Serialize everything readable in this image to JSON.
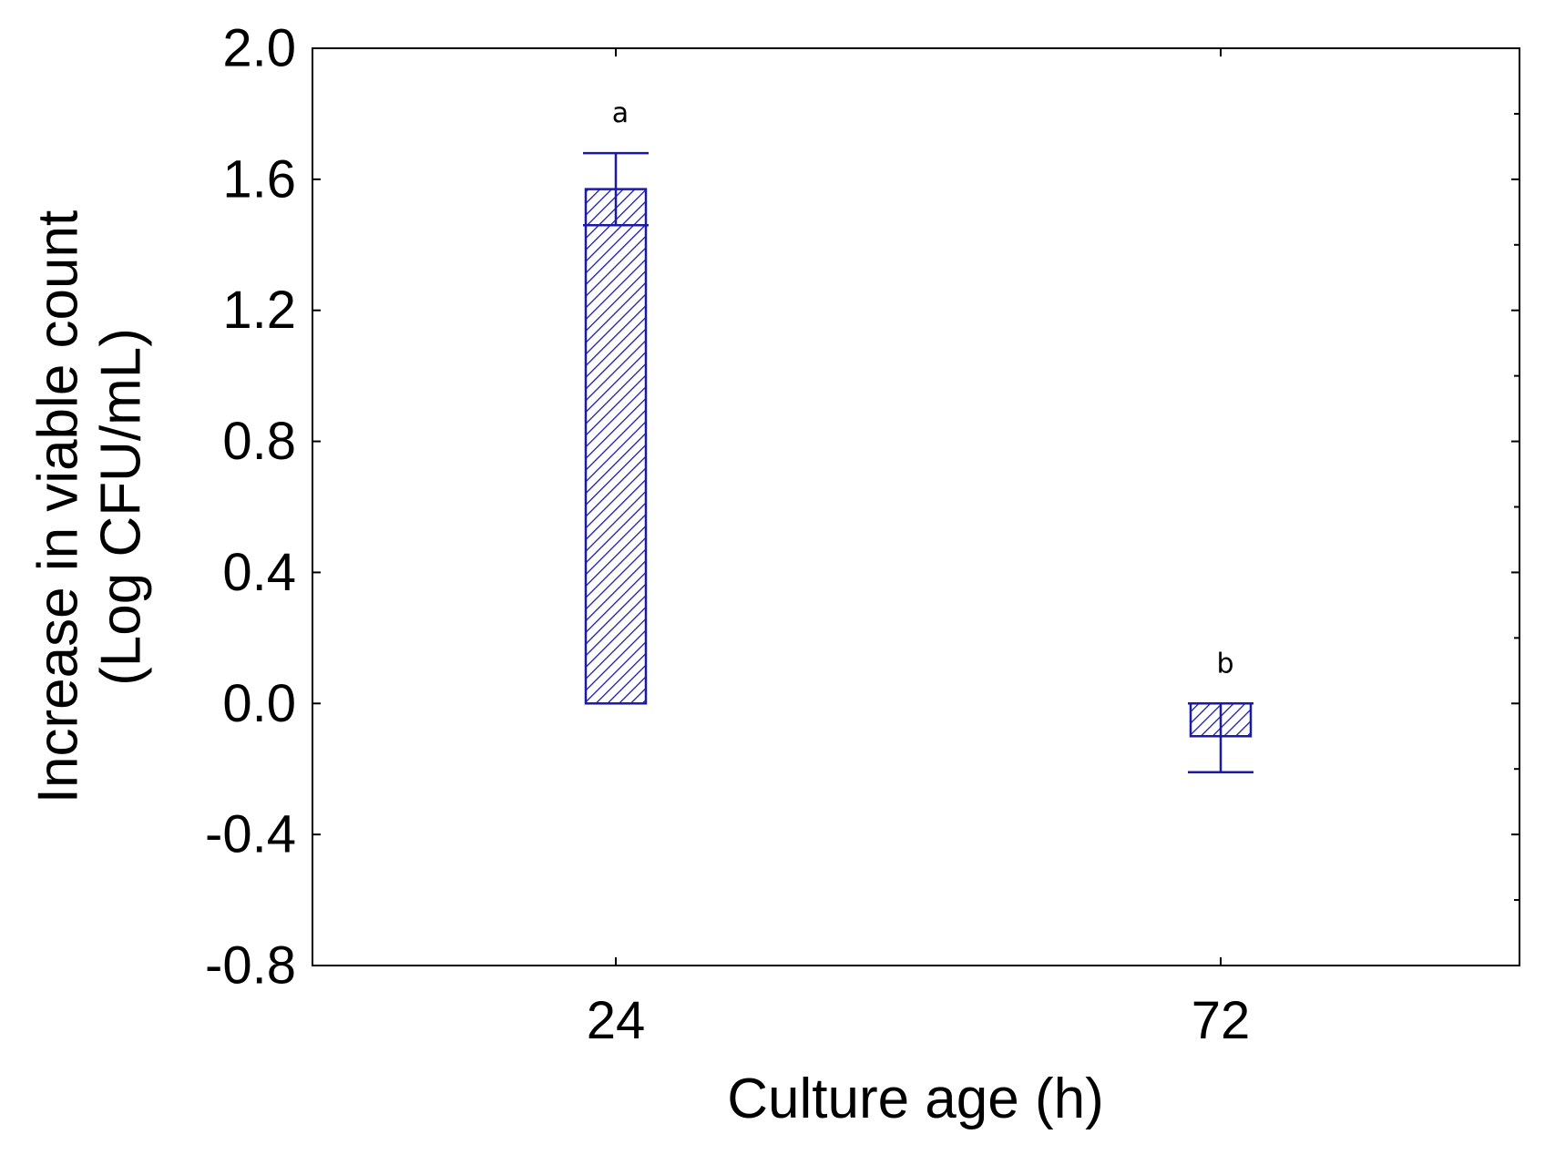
{
  "chart_data": {
    "type": "bar",
    "title": "",
    "xlabel": "Culture age (h)",
    "ylabel_lines": [
      "Increase in viable count",
      "(Log CFU/mL)"
    ],
    "categories": [
      "24",
      "72"
    ],
    "values": [
      1.57,
      -0.1
    ],
    "error_upper": [
      1.68,
      0.0
    ],
    "error_lower": [
      1.46,
      -0.21
    ],
    "significance_letters": [
      "a",
      "b"
    ],
    "ylim": [
      -0.8,
      2.0
    ],
    "yticks": [
      "2.0",
      "1.6",
      "1.2",
      "0.8",
      "0.4",
      "0.0",
      "-0.4",
      "-0.8"
    ],
    "ytick_values": [
      2.0,
      1.6,
      1.2,
      0.8,
      0.4,
      0.0,
      -0.4,
      -0.8
    ],
    "grid": false,
    "bar_color": "#1a1aa6",
    "bar_fill": "hatched"
  }
}
